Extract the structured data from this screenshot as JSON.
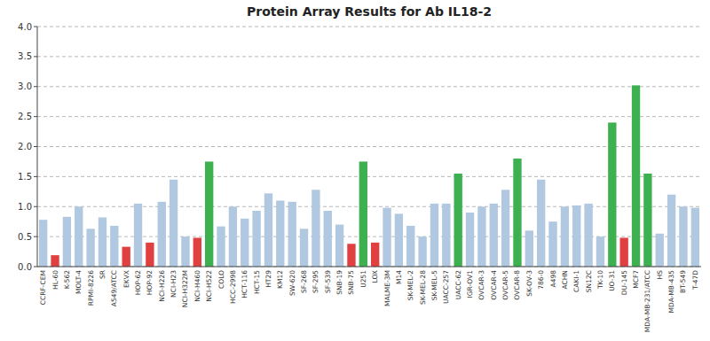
{
  "chart_data": {
    "type": "bar",
    "title": "Protein Array Results for Ab IL18-2",
    "categories": [
      "CCRF-CEM",
      "HL-60",
      "K-562",
      "MOLT-4",
      "RPMI-8226",
      "SR",
      "A549/ATCC",
      "EKVX",
      "HOP-62",
      "HOP-92",
      "NCI-H226",
      "NCI-H23",
      "NCI-H322M",
      "NCI-H460",
      "NCI-H522",
      "COLO",
      "HCC-2998",
      "HCT-116",
      "HCT-15",
      "HT29",
      "KM12",
      "SW-620",
      "SF-268",
      "SF-295",
      "SF-539",
      "SNB-19",
      "SNB-75",
      "U251",
      "LOX",
      "MALME-3M",
      "M14",
      "SK-MEL-2",
      "SK-MEL-28",
      "SK-MEL-5",
      "UACC-257",
      "UACC-62",
      "IGR-OV1",
      "OVCAR-3",
      "OVCAR-4",
      "OVCAR-5",
      "OVCAR-8",
      "SK-OV-3",
      "786-0",
      "A498",
      "ACHN",
      "CAKI-1",
      "SN12C",
      "TK-10",
      "UO-31",
      "DU-145",
      "MCF7",
      "MDA-MB-231/ATCC",
      "HS",
      "MDA-MB-435",
      "BT-549",
      "T-47D"
    ],
    "values": [
      0.78,
      0.19,
      0.83,
      1.0,
      0.63,
      0.82,
      0.68,
      0.33,
      1.05,
      0.4,
      1.08,
      1.45,
      0.5,
      0.48,
      1.75,
      0.67,
      1.0,
      0.8,
      0.93,
      1.22,
      1.1,
      1.08,
      0.63,
      1.28,
      0.93,
      0.7,
      0.38,
      1.75,
      0.4,
      0.98,
      0.88,
      0.68,
      0.5,
      1.05,
      1.05,
      1.55,
      0.9,
      1.0,
      1.05,
      1.28,
      1.8,
      0.6,
      1.45,
      0.75,
      1.0,
      1.02,
      1.05,
      0.5,
      2.4,
      0.48,
      3.02,
      1.55,
      0.55,
      1.2,
      1.0,
      0.98
    ],
    "colors": [
      "#b0c8e0",
      "#e04040",
      "#b0c8e0",
      "#b0c8e0",
      "#b0c8e0",
      "#b0c8e0",
      "#b0c8e0",
      "#e04040",
      "#b0c8e0",
      "#e04040",
      "#b0c8e0",
      "#b0c8e0",
      "#b0c8e0",
      "#e04040",
      "#3db050",
      "#b0c8e0",
      "#b0c8e0",
      "#b0c8e0",
      "#b0c8e0",
      "#b0c8e0",
      "#b0c8e0",
      "#b0c8e0",
      "#b0c8e0",
      "#b0c8e0",
      "#b0c8e0",
      "#b0c8e0",
      "#e04040",
      "#3db050",
      "#e04040",
      "#b0c8e0",
      "#b0c8e0",
      "#b0c8e0",
      "#b0c8e0",
      "#b0c8e0",
      "#b0c8e0",
      "#3db050",
      "#b0c8e0",
      "#b0c8e0",
      "#b0c8e0",
      "#b0c8e0",
      "#3db050",
      "#b0c8e0",
      "#b0c8e0",
      "#b0c8e0",
      "#b0c8e0",
      "#b0c8e0",
      "#b0c8e0",
      "#b0c8e0",
      "#3db050",
      "#e04040",
      "#3db050",
      "#3db050",
      "#b0c8e0",
      "#b0c8e0",
      "#b0c8e0",
      "#b0c8e0"
    ],
    "ylim": [
      0,
      4.0
    ],
    "yticks": [
      {
        "value": 0.0,
        "label": "0.0"
      },
      0.5,
      {
        "value": 1.0,
        "label": "1.0"
      },
      1.5,
      {
        "value": 2.0,
        "label": "2.0"
      },
      2.5,
      {
        "value": 3.0,
        "label": "3.0"
      },
      3.5,
      {
        "value": 4.0,
        "label": "4.0"
      }
    ],
    "grid": true
  }
}
